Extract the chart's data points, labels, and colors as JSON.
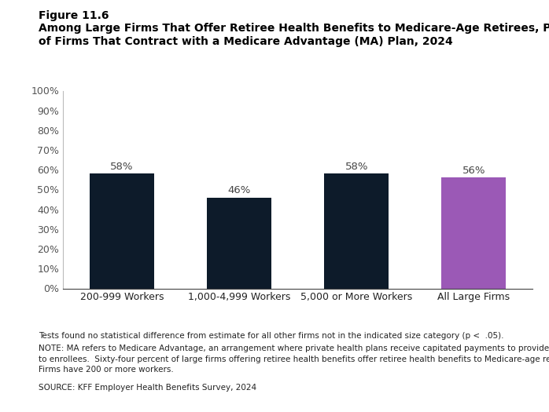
{
  "categories": [
    "200-999 Workers",
    "1,000-4,999 Workers",
    "5,000 or More Workers",
    "All Large Firms"
  ],
  "values": [
    58,
    46,
    58,
    56
  ],
  "bar_colors": [
    "#0d1b2a",
    "#0d1b2a",
    "#0d1b2a",
    "#9b59b6"
  ],
  "bar_labels": [
    "58%",
    "46%",
    "58%",
    "56%"
  ],
  "figure_label": "Figure 11.6",
  "title_line1": "Among Large Firms That Offer Retiree Health Benefits to Medicare-Age Retirees, Percentage",
  "title_line2": "of Firms That Contract with a Medicare Advantage (MA) Plan, 2024",
  "ylim": [
    0,
    100
  ],
  "yticks": [
    0,
    10,
    20,
    30,
    40,
    50,
    60,
    70,
    80,
    90,
    100
  ],
  "ytick_labels": [
    "0%",
    "10%",
    "20%",
    "30%",
    "40%",
    "50%",
    "60%",
    "70%",
    "80%",
    "90%",
    "100%"
  ],
  "footnote1": "Tests found no statistical difference from estimate for all other firms not in the indicated size category (p <  .05).",
  "footnote2": "NOTE: MA refers to Medicare Advantage, an arrangement where private health plans receive capitated payments to provide all Medicare-covered services\nto enrollees.  Sixty-four percent of large firms offering retiree health benefits offer retiree health benefits to Medicare-age retirees.  Large\nFirms have 200 or more workers.",
  "footnote3": "SOURCE: KFF Employer Health Benefits Survey, 2024",
  "label_fontsize": 9.5,
  "tick_fontsize": 9,
  "title_fontsize": 10,
  "footnote_fontsize": 7.5,
  "background_color": "#ffffff",
  "bar_edge_color": "none",
  "bar_width": 0.55
}
